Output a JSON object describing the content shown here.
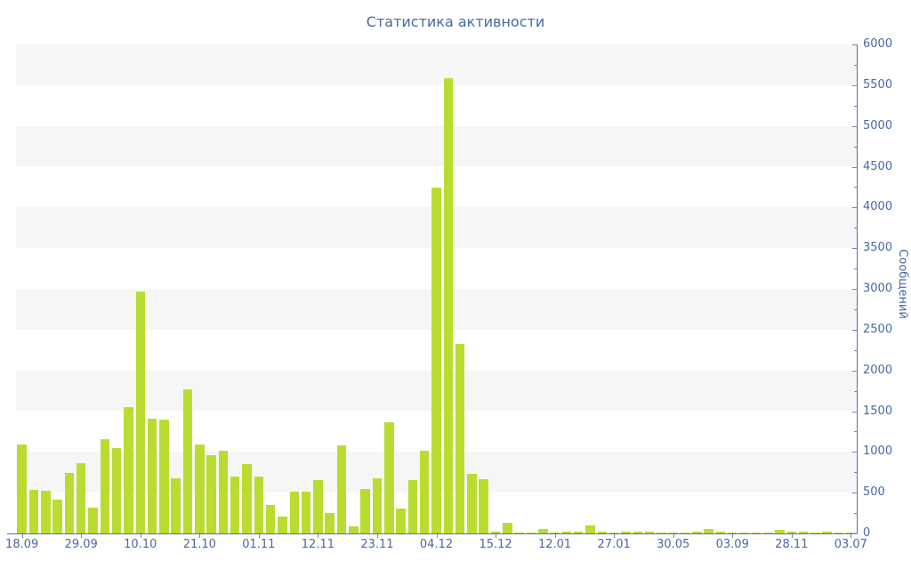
{
  "title": "Статистика активности",
  "colors": {
    "bar": "#b9dc31",
    "axis_line": "#5571a8",
    "tick": "#7585ad",
    "label_text": "#4868a6",
    "stripe_band": "#f6f6f6",
    "background": "#ffffff"
  },
  "chart_data": {
    "type": "bar",
    "title": "Статистика активности",
    "xlabel": "",
    "ylabel": "Сообщений",
    "ylim": [
      0,
      6000
    ],
    "y_major_tick_step": 500,
    "y_minor_tick_step": 250,
    "y_tick_labels": [
      "0",
      "500",
      "1000",
      "1500",
      "2000",
      "2500",
      "3000",
      "3500",
      "4000",
      "4500",
      "5000",
      "5500",
      "6000"
    ],
    "grid": "striped-horizontal-bands-every-500",
    "legend_position": "none",
    "x_tick_labels": [
      "18.09",
      "29.09",
      "10.10",
      "21.10",
      "01.11",
      "12.11",
      "23.11",
      "04.12",
      "15.12",
      "12.01",
      "27.01",
      "30.05",
      "03.09",
      "28.11",
      "03.07"
    ],
    "x_label_every_n_bars": 5,
    "values": [
      1090,
      530,
      520,
      420,
      740,
      860,
      320,
      1160,
      1050,
      1550,
      2970,
      1410,
      1400,
      680,
      1770,
      1090,
      960,
      1010,
      700,
      850,
      700,
      350,
      210,
      510,
      510,
      660,
      250,
      1080,
      90,
      550,
      680,
      1360,
      310,
      660,
      1010,
      4240,
      5590,
      2320,
      730,
      670,
      20,
      130,
      10,
      5,
      50,
      12,
      18,
      25,
      100,
      25,
      12,
      18,
      18,
      20,
      15,
      15,
      15,
      20,
      60,
      20,
      10,
      15,
      10,
      10,
      40,
      20,
      20,
      15,
      20,
      15,
      10
    ]
  }
}
